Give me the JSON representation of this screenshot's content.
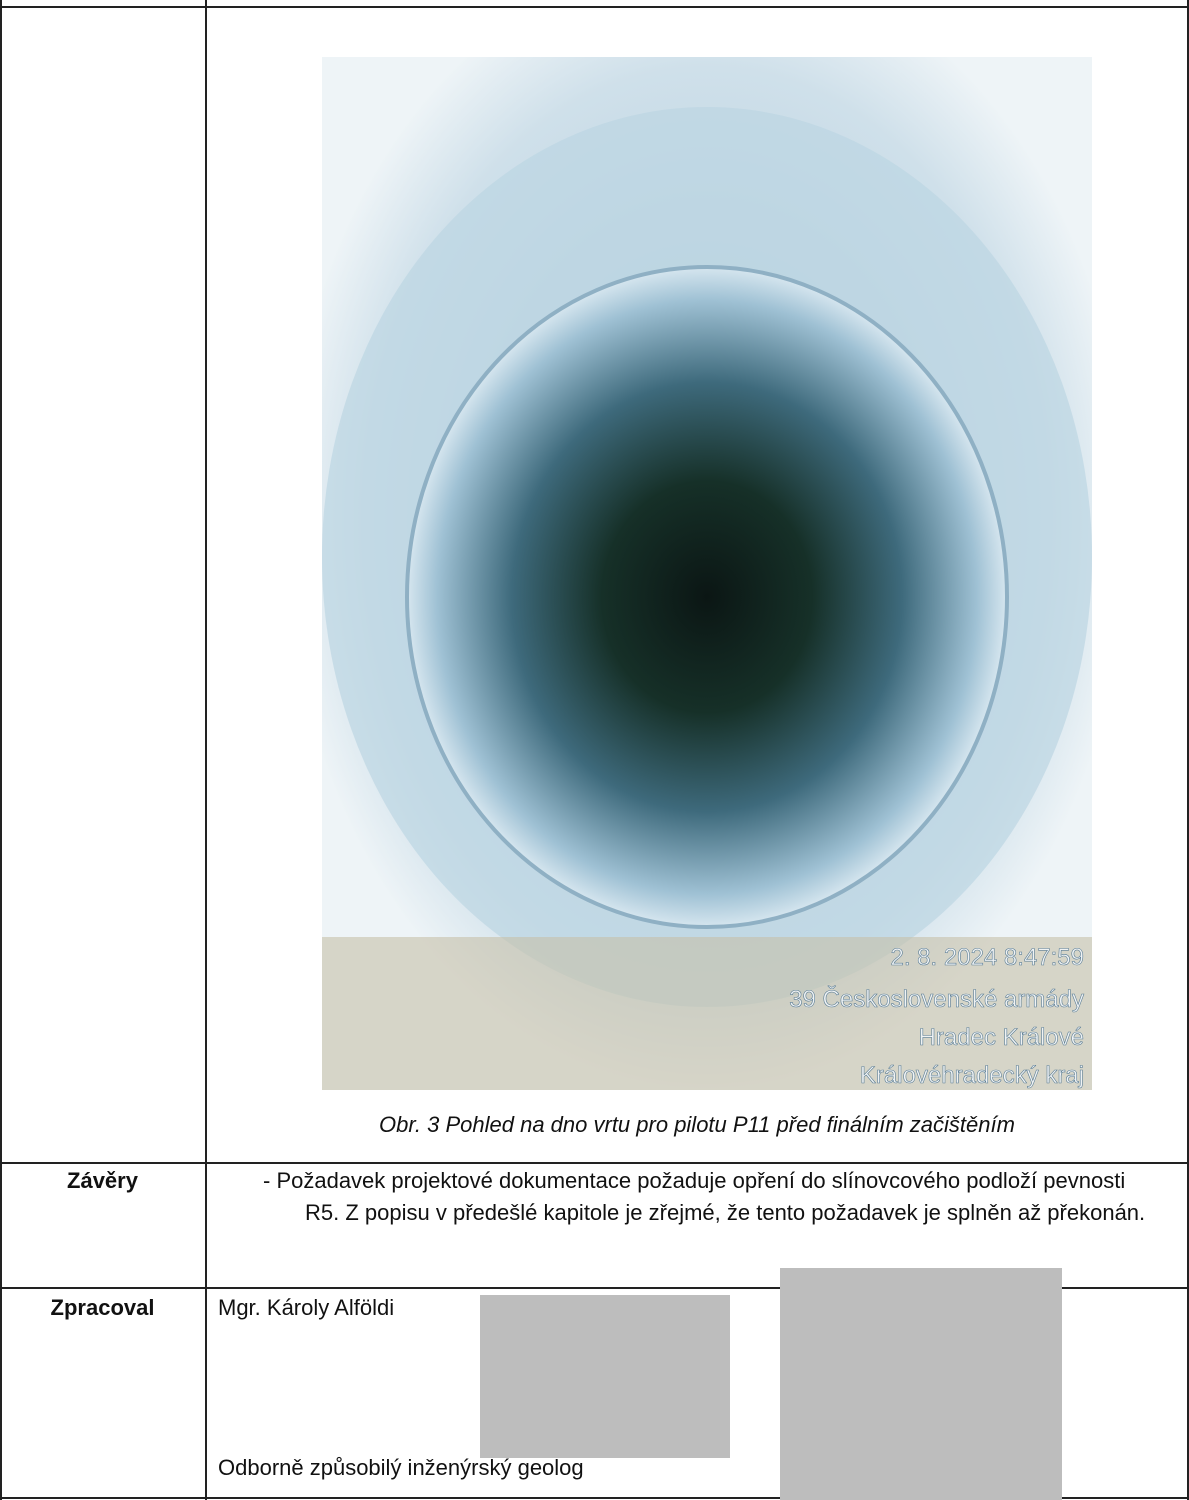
{
  "photo": {
    "timestamp": "2. 8. 2024 8:47:59",
    "location": [
      "39 Československé armády",
      "Hradec Králové",
      "Královéhradecký kraj"
    ],
    "caption": "Obr. 3 Pohled na dno vrtu pro pilotu P11 před finálním začištěním"
  },
  "table": {
    "rows": [
      {
        "label": "Závěry",
        "text": "- Požadavek projektové dokumentace požaduje opření do slínovcového podloží pevnosti R5. Z popisu v předešlé kapitole je zřejmé, že tento požadavek je splněn až překonán."
      },
      {
        "label": "Zpracoval",
        "name": "Mgr. Károly Alföldi",
        "role": "Odborně způsobilý inženýrský geolog"
      }
    ]
  }
}
